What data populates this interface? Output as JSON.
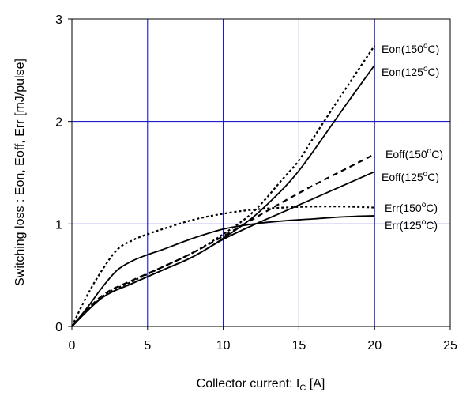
{
  "chart_data": {
    "type": "line",
    "title": "",
    "xlabel": "Collector current: I",
    "xlabel_sub": "C",
    "xlabel_unit": " [A]",
    "ylabel": "Switching loss  : Eon, Eoff, Err  [mJ/pulse]",
    "xlim": [
      0,
      25
    ],
    "ylim": [
      0,
      3
    ],
    "x_ticks": [
      0,
      5,
      10,
      15,
      20,
      25
    ],
    "y_ticks": [
      0,
      1,
      2,
      3
    ],
    "x_grid": [
      5,
      10,
      15,
      20
    ],
    "y_grid": [
      1,
      2
    ],
    "grid": true,
    "grid_color": "#0000c0",
    "line_color": "#000000",
    "series": [
      {
        "name": "Eon(150°C)",
        "label_parts": [
          "Eon(150",
          "o",
          "C)"
        ],
        "style": "dotted",
        "x": [
          0,
          2,
          4,
          6,
          8,
          10,
          12,
          14,
          15,
          16,
          18,
          20
        ],
        "y": [
          0,
          0.29,
          0.44,
          0.58,
          0.72,
          0.9,
          1.12,
          1.45,
          1.62,
          1.85,
          2.3,
          2.74
        ]
      },
      {
        "name": "Eon(125°C)",
        "label_parts": [
          "Eon(125",
          "o",
          "C)"
        ],
        "style": "solid",
        "x": [
          0,
          2,
          4,
          6,
          8,
          10,
          12,
          14,
          15,
          16,
          18,
          20
        ],
        "y": [
          0,
          0.28,
          0.42,
          0.55,
          0.68,
          0.86,
          1.07,
          1.35,
          1.52,
          1.72,
          2.14,
          2.55
        ]
      },
      {
        "name": "Eoff(150°C)",
        "label_parts": [
          "Eoff(150",
          "o",
          "C)"
        ],
        "style": "dashed",
        "x": [
          0,
          2,
          4,
          6,
          8,
          10,
          12,
          14,
          16,
          18,
          20
        ],
        "y": [
          0,
          0.3,
          0.45,
          0.58,
          0.72,
          0.88,
          1.05,
          1.22,
          1.38,
          1.53,
          1.68
        ]
      },
      {
        "name": "Eoff(125°C)",
        "label_parts": [
          "Eoff(125",
          "o",
          "C)"
        ],
        "style": "solid",
        "x": [
          0,
          2,
          4,
          6,
          8,
          10,
          12,
          14,
          16,
          18,
          20
        ],
        "y": [
          0,
          0.28,
          0.42,
          0.55,
          0.68,
          0.85,
          0.99,
          1.12,
          1.25,
          1.38,
          1.51
        ]
      },
      {
        "name": "Err(150°C)",
        "label_parts": [
          "Err(150",
          "o",
          "C)"
        ],
        "style": "dotted",
        "x": [
          0,
          1,
          2,
          3,
          4,
          5,
          6,
          8,
          10,
          12,
          14,
          16,
          18,
          20
        ],
        "y": [
          0,
          0.3,
          0.55,
          0.75,
          0.84,
          0.9,
          0.95,
          1.04,
          1.1,
          1.14,
          1.16,
          1.17,
          1.17,
          1.16
        ]
      },
      {
        "name": "Err(125°C)",
        "label_parts": [
          "Err(125",
          "o",
          "C)"
        ],
        "style": "solid",
        "x": [
          0,
          1,
          2,
          3,
          4,
          5,
          6,
          8,
          10,
          12,
          14,
          16,
          18,
          20
        ],
        "y": [
          0,
          0.18,
          0.38,
          0.55,
          0.64,
          0.7,
          0.75,
          0.86,
          0.95,
          1.0,
          1.03,
          1.05,
          1.07,
          1.08
        ]
      }
    ]
  }
}
